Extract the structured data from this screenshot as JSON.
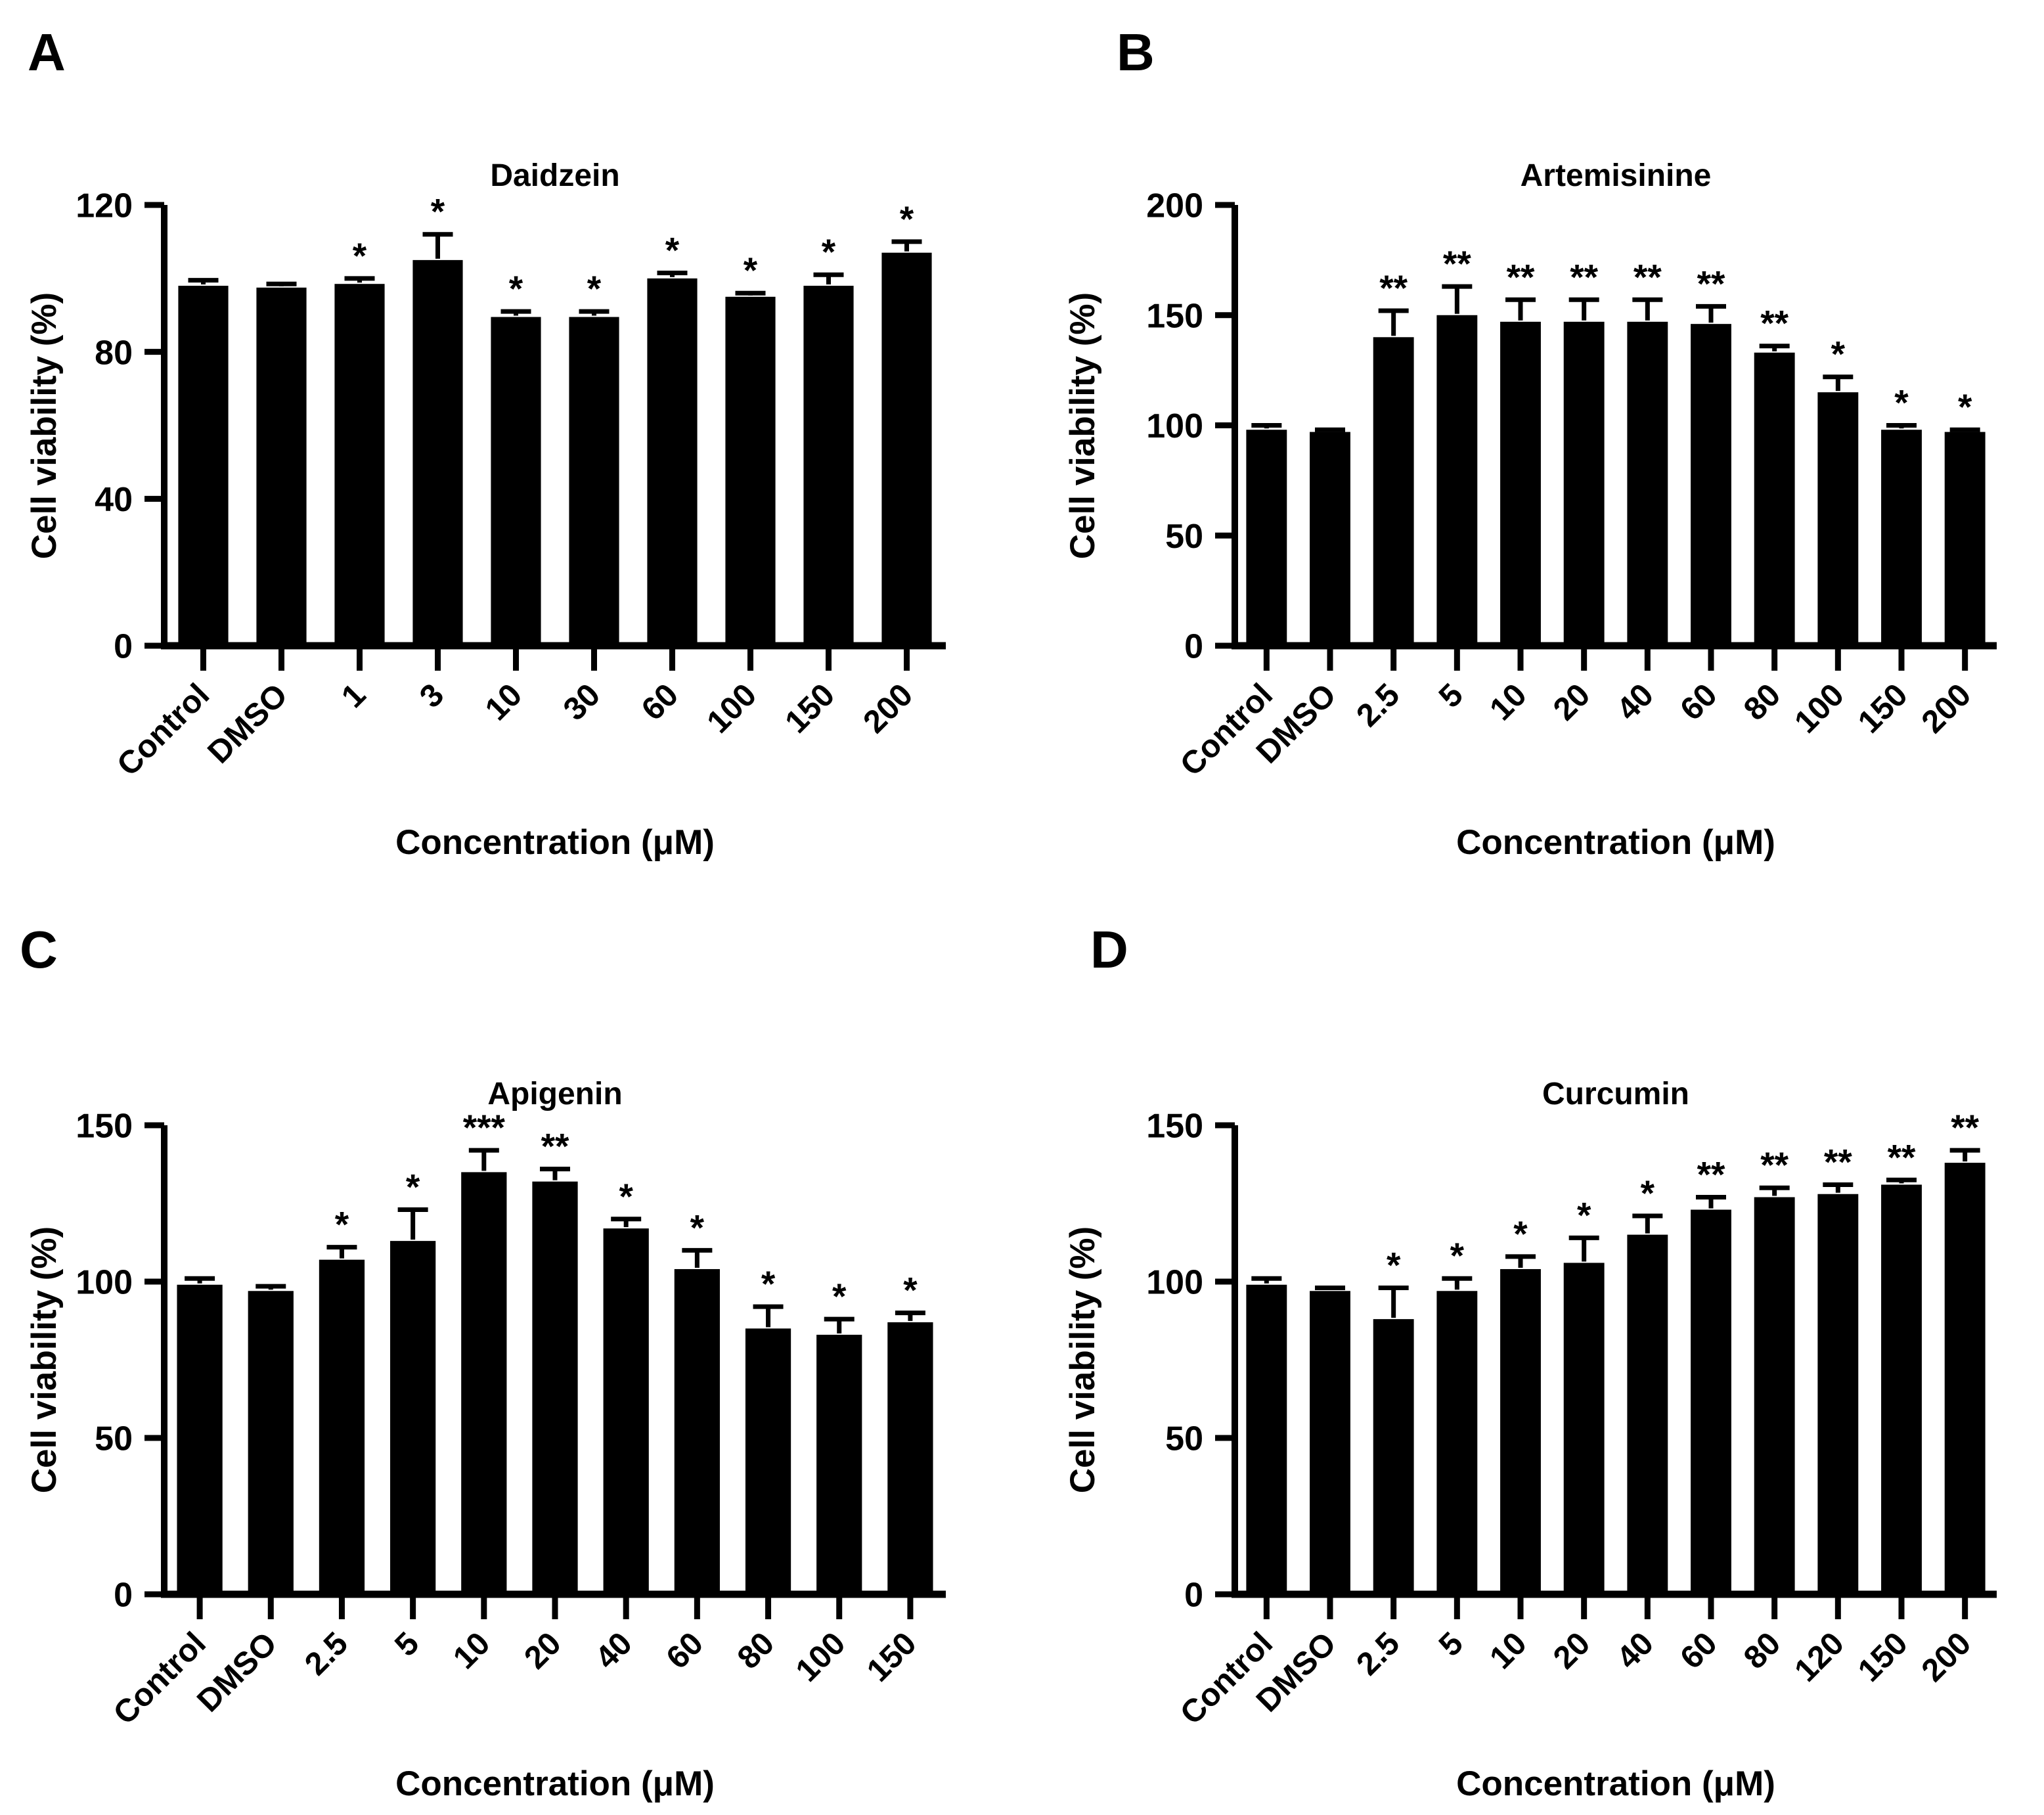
{
  "figure": {
    "background": "#ffffff",
    "bar_color": "#000000",
    "panel_labels": [
      "A",
      "B",
      "C",
      "D"
    ]
  },
  "chart_data": [
    {
      "type": "bar",
      "panel": "A",
      "title": "Daidzein",
      "xlabel": "Concentration (μM)",
      "ylabel": "Cell viability (%)",
      "ylim": [
        0,
        120
      ],
      "yticks": [
        0,
        40,
        80,
        120
      ],
      "grid": false,
      "legend": "none",
      "categories": [
        "Control",
        "DMSO",
        "1",
        "3",
        "10",
        "30",
        "60",
        "100",
        "150",
        "200"
      ],
      "values": [
        98,
        97.5,
        98.5,
        105,
        89.5,
        89.5,
        100,
        95,
        98,
        107
      ],
      "errors": [
        1.5,
        1,
        1.5,
        7,
        1.5,
        1.5,
        1.5,
        1,
        3,
        3
      ],
      "significance": [
        "",
        "",
        "*",
        "*",
        "*",
        "*",
        "*",
        "*",
        "*",
        "*"
      ]
    },
    {
      "type": "bar",
      "panel": "B",
      "title": "Artemisinine",
      "xlabel": "Concentration (μM)",
      "ylabel": "Cell viability (%)",
      "ylim": [
        0,
        200
      ],
      "yticks": [
        0,
        50,
        100,
        150,
        200
      ],
      "grid": false,
      "legend": "none",
      "categories": [
        "Control",
        "DMSO",
        "2.5",
        "5",
        "10",
        "20",
        "40",
        "60",
        "80",
        "100",
        "150",
        "200"
      ],
      "values": [
        98,
        97,
        140,
        150,
        147,
        147,
        147,
        146,
        133,
        115,
        98,
        97
      ],
      "errors": [
        2,
        1,
        12,
        13,
        10,
        10,
        10,
        8,
        3,
        7,
        2,
        1
      ],
      "significance": [
        "",
        "",
        "**",
        "**",
        "**",
        "**",
        "**",
        "**",
        "**",
        "*",
        "*",
        "*"
      ]
    },
    {
      "type": "bar",
      "panel": "C",
      "title": "Apigenin",
      "xlabel": "Concentration (μM)",
      "ylabel": "Cell viability (%)",
      "ylim": [
        0,
        150
      ],
      "yticks": [
        0,
        50,
        100,
        150
      ],
      "grid": false,
      "legend": "none",
      "categories": [
        "Control",
        "DMSO",
        "2.5",
        "5",
        "10",
        "20",
        "40",
        "60",
        "80",
        "100",
        "150"
      ],
      "values": [
        99,
        97,
        107,
        113,
        135,
        132,
        117,
        104,
        85,
        83,
        87
      ],
      "errors": [
        2,
        1.5,
        4,
        10,
        7,
        4,
        3,
        6,
        7,
        5,
        3
      ],
      "significance": [
        "",
        "",
        "*",
        "*",
        "***",
        "**",
        "*",
        "*",
        "*",
        "*",
        "*"
      ]
    },
    {
      "type": "bar",
      "panel": "D",
      "title": "Curcumin",
      "xlabel": "Concentration (μM)",
      "ylabel": "Cell viability (%)",
      "ylim": [
        0,
        150
      ],
      "yticks": [
        0,
        50,
        100,
        150
      ],
      "grid": false,
      "legend": "none",
      "categories": [
        "Control",
        "DMSO",
        "2.5",
        "5",
        "10",
        "20",
        "40",
        "60",
        "80",
        "120",
        "150",
        "200"
      ],
      "values": [
        99,
        97,
        88,
        97,
        104,
        106,
        115,
        123,
        127,
        128,
        131,
        138
      ],
      "errors": [
        2,
        1,
        10,
        4,
        4,
        8,
        6,
        4,
        3,
        3,
        1.5,
        4
      ],
      "significance": [
        "",
        "",
        "*",
        "*",
        "*",
        "*",
        "*",
        "**",
        "**",
        "**",
        "**",
        "**"
      ]
    }
  ]
}
